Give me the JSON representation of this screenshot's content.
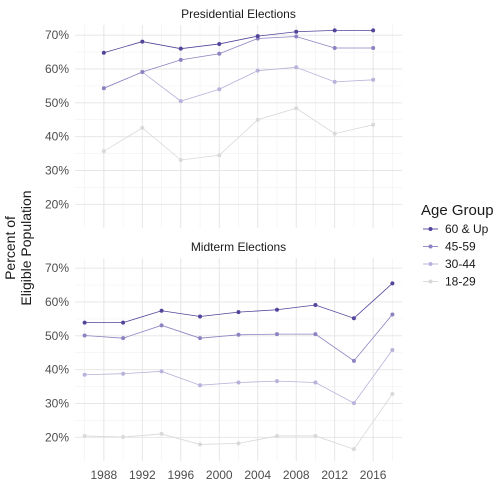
{
  "chart_data": {
    "type": "line",
    "ylabel_line1": "Percent of",
    "ylabel_line2": "Eligible Population",
    "legend_title": "Age Group",
    "legend_position": "right",
    "grid": true,
    "xlim": [
      1985,
      2019
    ],
    "x_ticks": [
      "1988",
      "1992",
      "1996",
      "2000",
      "2004",
      "2008",
      "2012",
      "2016"
    ],
    "y_tick_labels": [
      "20%",
      "30%",
      "40%",
      "50%",
      "60%",
      "70%"
    ],
    "ylim": [
      13,
      73
    ],
    "colors": {
      "60 & Up": "#54449a",
      "45-59": "#8c83c1",
      "30-44": "#b9b2da",
      "18-29": "#d9d9d9"
    },
    "panels": [
      {
        "title": "Presidential Elections",
        "x": [
          1988,
          1992,
          1996,
          2000,
          2004,
          2008,
          2012,
          2016
        ],
        "series": [
          {
            "name": "60 & Up",
            "values": [
              64.8,
              68.1,
              66.0,
              67.4,
              69.7,
              71.0,
              71.4,
              71.4
            ]
          },
          {
            "name": "45-59",
            "values": [
              54.3,
              59.1,
              62.7,
              64.5,
              69.0,
              69.6,
              66.2,
              66.2
            ]
          },
          {
            "name": "30-44",
            "values": [
              54.3,
              59.1,
              50.5,
              54.0,
              59.5,
              60.5,
              56.2,
              56.8
            ]
          },
          {
            "name": "18-29",
            "values": [
              35.7,
              42.6,
              33.1,
              34.5,
              45.0,
              48.4,
              40.9,
              43.5
            ]
          }
        ]
      },
      {
        "title": "Midterm Elections",
        "x": [
          1986,
          1990,
          1994,
          1998,
          2002,
          2006,
          2010,
          2014,
          2018
        ],
        "series": [
          {
            "name": "60 & Up",
            "values": [
              53.9,
              53.9,
              57.4,
              55.7,
              57.0,
              57.7,
              59.1,
              55.2,
              65.5
            ]
          },
          {
            "name": "45-59",
            "values": [
              50.1,
              49.3,
              53.1,
              49.3,
              50.3,
              50.5,
              50.5,
              42.6,
              56.3
            ]
          },
          {
            "name": "30-44",
            "values": [
              38.5,
              38.8,
              39.5,
              35.4,
              36.2,
              36.6,
              36.2,
              30.1,
              45.8
            ]
          },
          {
            "name": "18-29",
            "values": [
              20.4,
              20.1,
              21.0,
              17.9,
              18.2,
              20.4,
              20.4,
              16.5,
              32.8
            ]
          }
        ]
      }
    ]
  }
}
